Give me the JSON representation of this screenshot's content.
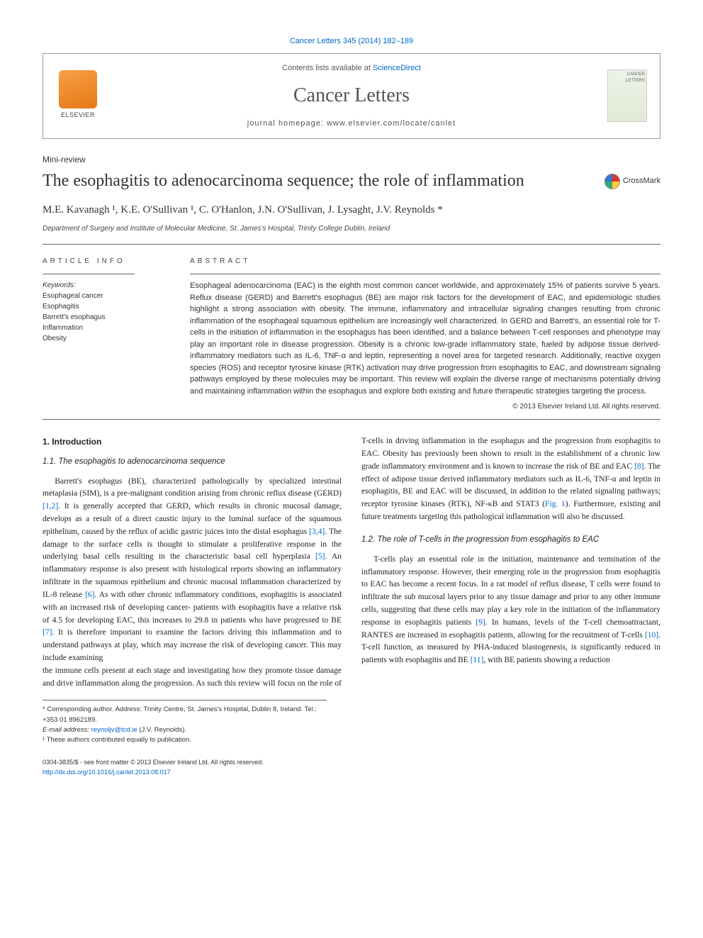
{
  "citation": "Cancer Letters 345 (2014) 182–189",
  "header": {
    "contents_prefix": "Contents lists available at ",
    "contents_link": "ScienceDirect",
    "journal_title": "Cancer Letters",
    "homepage_prefix": "journal homepage: ",
    "homepage_url": "www.elsevier.com/locate/canlet",
    "publisher_label": "ELSEVIER",
    "cover_label": "CANCER LETTERS"
  },
  "article": {
    "type": "Mini-review",
    "title": "The esophagitis to adenocarcinoma sequence; the role of inflammation",
    "crossmark_label": "CrossMark",
    "authors_html": "M.E. Kavanagh ¹, K.E. O'Sullivan ¹, C. O'Hanlon, J.N. O'Sullivan, J. Lysaght, J.V. Reynolds *",
    "affiliation": "Department of Surgery and Institute of Molecular Medicine, St. James's Hospital, Trinity College Dublin, Ireland"
  },
  "info": {
    "label": "ARTICLE INFO",
    "keywords_head": "Keywords:",
    "keywords": [
      "Esophageal cancer",
      "Esophagitis",
      "Barrett's esophagus",
      "Inflammation",
      "Obesity"
    ]
  },
  "abstract": {
    "label": "ABSTRACT",
    "text": "Esophageal adenocarcinoma (EAC) is the eighth most common cancer worldwide, and approximately 15% of patients survive 5 years. Reflux disease (GERD) and Barrett's esophagus (BE) are major risk factors for the development of EAC, and epidemiologic studies highlight a strong association with obesity. The immune, inflammatory and intracellular signaling changes resulting from chronic inflammation of the esophageal squamous epithelium are increasingly well characterized. In GERD and Barrett's, an essential role for T-cells in the initiation of inflammation in the esophagus has been identified, and a balance between T-cell responses and phenotype may play an important role in disease progression. Obesity is a chronic low-grade inflammatory state, fueled by adipose tissue derived- inflammatory mediators such as IL-6, TNF-α and leptin, representing a novel area for targeted research. Additionally, reactive oxygen species (ROS) and receptor tyrosine kinase (RTK) activation may drive progression from esophagitis to EAC, and downstream signaling pathways employed by these molecules may be important. This review will explain the diverse range of mechanisms potentially driving and maintaining inflammation within the esophagus and explore both existing and future therapeutic strategies targeting the process.",
    "copyright": "© 2013 Elsevier Ireland Ltd. All rights reserved."
  },
  "body": {
    "s1_num": "1. Introduction",
    "s11_num": "1.1. The esophagitis to adenocarcinoma sequence",
    "p1": "Barrett's esophagus (BE), characterized pathologically by specialized intestinal metaplasia (SIM), is a pre-malignant condition arising from chronic reflux disease (GERD) [1,2]. It is generally accepted that GERD, which results in chronic mucosal damage, develops as a result of a direct caustic injury to the luminal surface of the squamous epithelium, caused by the reflux of acidic gastric juices into the distal esophagus [3,4]. The damage to the surface cells is thought to stimulate a proliferative response in the underlying basal cells resulting in the characteristic basal cell hyperplasia [5]. An inflammatory response is also present with histological reports showing an inflammatory infiltrate in the squamous epithelium and chronic mucosal inflammation characterized by IL-8 release [6]. As with other chronic inflammatory conditions, esophagitis is associated with an increased risk of developing cancer- patients with esophagitis have a relative risk of 4.5 for developing EAC, this increases to 29.8 in patients who have progressed to BE [7]. It is therefore important to examine the factors driving this inflammation and to understand pathways at play, which may increase the risk of developing cancer. This may include examining",
    "p2": "the immune cells present at each stage and investigating how they promote tissue damage and drive inflammation along the progression. As such this review will focus on the role of T-cells in driving inflammation in the esophagus and the progression from esophagitis to EAC. Obesity has previously been shown to result in the establishment of a chronic low grade inflammatory environment and is known to increase the risk of BE and EAC [8]. The effect of adipose tissue derived inflammatory mediators such as IL-6, TNF-α and leptin in esophagitis, BE and EAC will be discussed, in addition to the related signaling pathways; receptor tyrosine kinases (RTK), NF-κB and STAT3 (Fig. 1). Furthermore, existing and future treatments targeting this pathological inflammation will also be discussed.",
    "s12_num": "1.2. The role of T-cells in the progression from esophagitis to EAC",
    "p3": "T-cells play an essential role in the initiation, maintenance and termination of the inflammatory response. However, their emerging role in the progression from esophagitis to EAC has become a recent focus. In a rat model of reflux disease, T cells were found to infiltrate the sub mucosal layers prior to any tissue damage and prior to any other immune cells, suggesting that these cells may play a key role in the initiation of the inflammatory response in esophagitis patients [9]. In humans, levels of the T-cell chemoattractant, RANTES are increased in esophagitis patients, allowing for the recruitment of T-cells [10]. T-cell function, as measured by PHA-induced blastogenesis, is significantly reduced in patients with esophagitis and BE [11], with BE patients showing a reduction"
  },
  "footnotes": {
    "corresponding": "* Corresponding author. Address: Trinity Centre, St. James's Hospital, Dublin 8, Ireland. Tel.: +353 01 8962189.",
    "email_label": "E-mail address: ",
    "email": "reynoljv@tcd.ie",
    "email_person": " (J.V. Reynolds).",
    "equal": "¹ These authors contributed equally to publication."
  },
  "footer": {
    "line1": "0304-3835/$ - see front matter © 2013 Elsevier Ireland Ltd. All rights reserved.",
    "doi": "http://dx.doi.org/10.1016/j.canlet.2013.08.017"
  },
  "colors": {
    "link": "#0066cc",
    "text": "#333333",
    "rule": "#666666",
    "elsevier_orange": "#e67817"
  }
}
